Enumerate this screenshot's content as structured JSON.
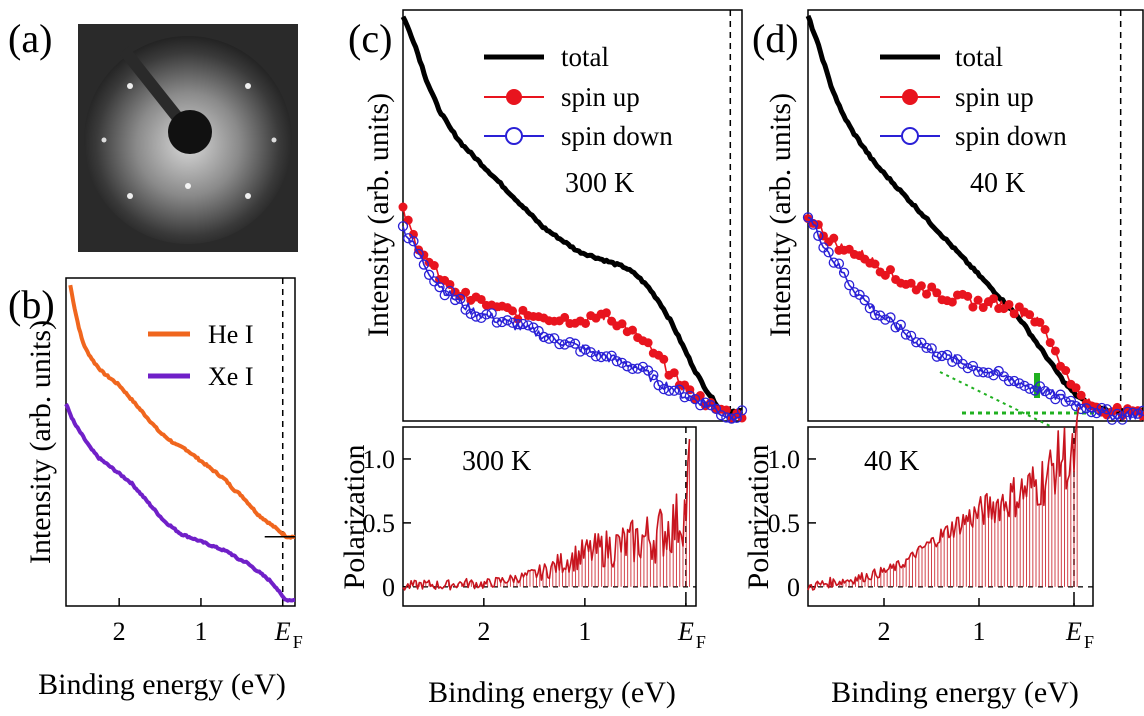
{
  "panel_labels": {
    "a": "(a)",
    "b": "(b)",
    "c": "(c)",
    "d": "(d)"
  },
  "colors": {
    "total": "#000000",
    "spin_up": "#e8141e",
    "spin_down": "#2a20d6",
    "he_i": "#f0661e",
    "xe_i": "#7020c8",
    "polarization": "#c8141e",
    "green_marker": "#20b020"
  },
  "image_a": {
    "description_icon": "leed-pattern-image"
  },
  "chart_data": [
    {
      "panel": "b",
      "type": "line",
      "xlabel": "Binding energy (eV)",
      "ylabel": "Intensity (arb. units)",
      "xlim": [
        2.65,
        -0.15
      ],
      "x_ticks": [
        {
          "value": 2,
          "label": "2"
        },
        {
          "value": 1,
          "label": "1"
        },
        {
          "value": 0,
          "label": "E",
          "sub": "F"
        }
      ],
      "ylim": [
        0,
        1
      ],
      "fermi_line": 0,
      "series": [
        {
          "name": "He I",
          "color": "#f0661e",
          "x": [
            2.6,
            2.55,
            2.5,
            2.45,
            2.4,
            2.3,
            2.2,
            2.1,
            2.0,
            1.9,
            1.8,
            1.7,
            1.6,
            1.5,
            1.4,
            1.3,
            1.2,
            1.1,
            1.0,
            0.9,
            0.8,
            0.7,
            0.6,
            0.5,
            0.4,
            0.3,
            0.2,
            0.1,
            0.05,
            0.0,
            -0.05,
            -0.1,
            -0.15
          ],
          "y": [
            1.0,
            0.93,
            0.87,
            0.82,
            0.79,
            0.75,
            0.72,
            0.7,
            0.68,
            0.65,
            0.62,
            0.59,
            0.56,
            0.53,
            0.51,
            0.49,
            0.48,
            0.46,
            0.44,
            0.42,
            0.4,
            0.38,
            0.35,
            0.33,
            0.3,
            0.27,
            0.25,
            0.23,
            0.22,
            0.21,
            0.2,
            0.2,
            0.2
          ]
        },
        {
          "name": "Xe I",
          "color": "#7020c8",
          "x": [
            2.65,
            2.55,
            2.45,
            2.35,
            2.25,
            2.15,
            2.05,
            1.95,
            1.85,
            1.75,
            1.65,
            1.55,
            1.45,
            1.35,
            1.25,
            1.15,
            1.05,
            0.95,
            0.85,
            0.75,
            0.65,
            0.55,
            0.45,
            0.35,
            0.25,
            0.15,
            0.08,
            0.03,
            0.0,
            -0.05,
            -0.1,
            -0.15
          ],
          "y": [
            0.62,
            0.56,
            0.52,
            0.48,
            0.45,
            0.43,
            0.41,
            0.39,
            0.37,
            0.34,
            0.31,
            0.28,
            0.25,
            0.23,
            0.21,
            0.2,
            0.19,
            0.18,
            0.17,
            0.16,
            0.15,
            0.13,
            0.12,
            0.1,
            0.08,
            0.06,
            0.04,
            0.02,
            0.01,
            0.0,
            0.0,
            0.0
          ]
        }
      ]
    },
    {
      "panel": "c",
      "type": "line",
      "temperature": "300 K",
      "xlabel": "Binding energy (eV)",
      "ylabel": "Intensity (arb. units)",
      "xlim": [
        2.8,
        -0.1
      ],
      "x_ticks": [
        {
          "value": 2,
          "label": "2"
        },
        {
          "value": 1,
          "label": "1"
        },
        {
          "value": 0,
          "label": "E",
          "sub": "F"
        }
      ],
      "ylim": [
        0,
        1
      ],
      "fermi_line": 0,
      "series": [
        {
          "name": "total",
          "color": "#000000",
          "x": [
            2.8,
            2.7,
            2.6,
            2.5,
            2.4,
            2.3,
            2.2,
            2.1,
            2.0,
            1.9,
            1.8,
            1.7,
            1.6,
            1.5,
            1.4,
            1.3,
            1.2,
            1.1,
            1.0,
            0.9,
            0.8,
            0.7,
            0.6,
            0.5,
            0.4,
            0.3,
            0.2,
            0.15,
            0.1,
            0.05,
            0.0,
            -0.05,
            -0.1
          ],
          "y": [
            1.0,
            0.93,
            0.84,
            0.77,
            0.72,
            0.68,
            0.65,
            0.62,
            0.59,
            0.56,
            0.53,
            0.5,
            0.47,
            0.45,
            0.43,
            0.41,
            0.4,
            0.39,
            0.38,
            0.37,
            0.35,
            0.32,
            0.28,
            0.23,
            0.17,
            0.11,
            0.06,
            0.04,
            0.02,
            0.01,
            0.01,
            0.01,
            0.01
          ]
        },
        {
          "name": "spin up",
          "color": "#e8141e",
          "x": [
            2.8,
            2.7,
            2.6,
            2.5,
            2.4,
            2.3,
            2.2,
            2.1,
            2.0,
            1.9,
            1.8,
            1.7,
            1.6,
            1.5,
            1.4,
            1.3,
            1.2,
            1.1,
            1.0,
            0.9,
            0.8,
            0.7,
            0.6,
            0.5,
            0.4,
            0.3,
            0.2,
            0.15,
            0.1,
            0.05,
            0.0,
            -0.05,
            -0.1
          ],
          "y": [
            0.51,
            0.44,
            0.39,
            0.35,
            0.32,
            0.3,
            0.29,
            0.28,
            0.27,
            0.26,
            0.25,
            0.25,
            0.25,
            0.24,
            0.24,
            0.24,
            0.24,
            0.25,
            0.24,
            0.22,
            0.2,
            0.17,
            0.14,
            0.1,
            0.07,
            0.05,
            0.03,
            0.02,
            0.01,
            0.01,
            0.0,
            0.0,
            0.0
          ]
        },
        {
          "name": "spin down",
          "color": "#2a20d6",
          "x": [
            2.8,
            2.7,
            2.6,
            2.5,
            2.4,
            2.3,
            2.2,
            2.1,
            2.0,
            1.9,
            1.8,
            1.7,
            1.6,
            1.5,
            1.4,
            1.3,
            1.2,
            1.1,
            1.0,
            0.9,
            0.8,
            0.7,
            0.6,
            0.5,
            0.4,
            0.3,
            0.2,
            0.15,
            0.1,
            0.05,
            0.0,
            -0.05,
            -0.1
          ],
          "y": [
            0.47,
            0.42,
            0.37,
            0.33,
            0.3,
            0.28,
            0.26,
            0.25,
            0.24,
            0.23,
            0.22,
            0.21,
            0.2,
            0.19,
            0.18,
            0.17,
            0.16,
            0.15,
            0.14,
            0.13,
            0.12,
            0.1,
            0.08,
            0.07,
            0.05,
            0.04,
            0.03,
            0.02,
            0.01,
            0.0,
            0.0,
            0.0,
            0.0
          ]
        }
      ]
    },
    {
      "panel": "c-bottom",
      "type": "line",
      "temperature": "300 K",
      "xlabel": "Binding energy (eV)",
      "ylabel": "Polarization",
      "xlim": [
        2.8,
        -0.1
      ],
      "ylim": [
        -0.15,
        1.25
      ],
      "y_ticks": [
        0,
        0.5,
        1.0
      ],
      "y_tick_labels": [
        "0",
        "0.5",
        "1.0"
      ],
      "series": [
        {
          "name": "",
          "color": "#c8141e",
          "x": [
            2.8,
            2.6,
            2.4,
            2.2,
            2.0,
            1.8,
            1.6,
            1.4,
            1.2,
            1.0,
            0.8,
            0.6,
            0.4,
            0.3,
            0.2,
            0.1,
            0.05,
            0.0,
            -0.05
          ],
          "y": [
            0.0,
            0.02,
            0.01,
            0.03,
            0.02,
            0.05,
            0.08,
            0.12,
            0.2,
            0.26,
            0.3,
            0.33,
            0.38,
            0.4,
            0.45,
            0.5,
            0.55,
            0.6,
            1.15
          ]
        }
      ]
    },
    {
      "panel": "d",
      "type": "line",
      "temperature": "40 K",
      "xlabel": "Binding energy (eV)",
      "ylabel": "Intensity (arb. units)",
      "xlim": [
        2.8,
        -0.2
      ],
      "x_ticks": [
        {
          "value": 2,
          "label": "2"
        },
        {
          "value": 1,
          "label": "1"
        },
        {
          "value": 0,
          "label": "E",
          "sub": "F"
        }
      ],
      "ylim": [
        0,
        1
      ],
      "fermi_line": 0,
      "series": [
        {
          "name": "total",
          "color": "#000000",
          "x": [
            2.8,
            2.7,
            2.6,
            2.5,
            2.4,
            2.3,
            2.2,
            2.1,
            2.0,
            1.9,
            1.8,
            1.7,
            1.6,
            1.5,
            1.4,
            1.3,
            1.2,
            1.1,
            1.0,
            0.9,
            0.8,
            0.7,
            0.6,
            0.5,
            0.4,
            0.3,
            0.2,
            0.1,
            0.0,
            -0.1,
            -0.2
          ],
          "y": [
            1.0,
            0.92,
            0.83,
            0.76,
            0.71,
            0.67,
            0.63,
            0.6,
            0.57,
            0.54,
            0.51,
            0.48,
            0.45,
            0.42,
            0.39,
            0.36,
            0.33,
            0.3,
            0.27,
            0.24,
            0.2,
            0.16,
            0.12,
            0.08,
            0.05,
            0.03,
            0.02,
            0.01,
            0.01,
            0.01,
            0.01
          ]
        },
        {
          "name": "spin up",
          "color": "#e8141e",
          "x": [
            2.8,
            2.7,
            2.6,
            2.5,
            2.4,
            2.3,
            2.2,
            2.1,
            2.0,
            1.9,
            1.8,
            1.7,
            1.6,
            1.5,
            1.4,
            1.3,
            1.2,
            1.1,
            1.0,
            0.9,
            0.8,
            0.7,
            0.6,
            0.5,
            0.4,
            0.3,
            0.2,
            0.1,
            0.0,
            -0.1,
            -0.2
          ],
          "y": [
            0.5,
            0.47,
            0.44,
            0.42,
            0.41,
            0.4,
            0.38,
            0.36,
            0.34,
            0.33,
            0.32,
            0.31,
            0.3,
            0.29,
            0.29,
            0.28,
            0.28,
            0.28,
            0.27,
            0.26,
            0.25,
            0.22,
            0.17,
            0.11,
            0.06,
            0.03,
            0.02,
            0.01,
            0.01,
            0.0,
            0.0
          ]
        },
        {
          "name": "spin down",
          "color": "#2a20d6",
          "x": [
            2.8,
            2.7,
            2.6,
            2.5,
            2.4,
            2.3,
            2.2,
            2.1,
            2.0,
            1.9,
            1.8,
            1.7,
            1.6,
            1.5,
            1.4,
            1.3,
            1.2,
            1.1,
            1.0,
            0.9,
            0.8,
            0.7,
            0.6,
            0.5,
            0.4,
            0.3,
            0.2,
            0.1,
            0.0,
            -0.1,
            -0.2
          ],
          "y": [
            0.5,
            0.45,
            0.4,
            0.36,
            0.32,
            0.29,
            0.26,
            0.24,
            0.22,
            0.2,
            0.18,
            0.16,
            0.15,
            0.14,
            0.13,
            0.12,
            0.11,
            0.1,
            0.09,
            0.08,
            0.07,
            0.06,
            0.05,
            0.04,
            0.03,
            0.02,
            0.01,
            0.0,
            0.0,
            0.0,
            0.0
          ]
        }
      ]
    },
    {
      "panel": "d-bottom",
      "type": "line",
      "temperature": "40 K",
      "xlabel": "Binding energy (eV)",
      "ylabel": "Polarization",
      "xlim": [
        2.8,
        -0.2
      ],
      "ylim": [
        -0.15,
        1.25
      ],
      "y_ticks": [
        0,
        0.5,
        1.0
      ],
      "y_tick_labels": [
        "0",
        "0.5",
        "1.0"
      ],
      "series": [
        {
          "name": "",
          "color": "#c8141e",
          "x": [
            2.8,
            2.6,
            2.4,
            2.2,
            2.0,
            1.8,
            1.6,
            1.4,
            1.2,
            1.0,
            0.8,
            0.6,
            0.4,
            0.3,
            0.2,
            0.1,
            0.05,
            0.0,
            -0.05
          ],
          "y": [
            0.0,
            0.03,
            0.05,
            0.08,
            0.12,
            0.18,
            0.3,
            0.4,
            0.5,
            0.58,
            0.65,
            0.72,
            0.8,
            0.85,
            0.95,
            1.05,
            0.9,
            1.0,
            1.2
          ]
        }
      ]
    }
  ]
}
